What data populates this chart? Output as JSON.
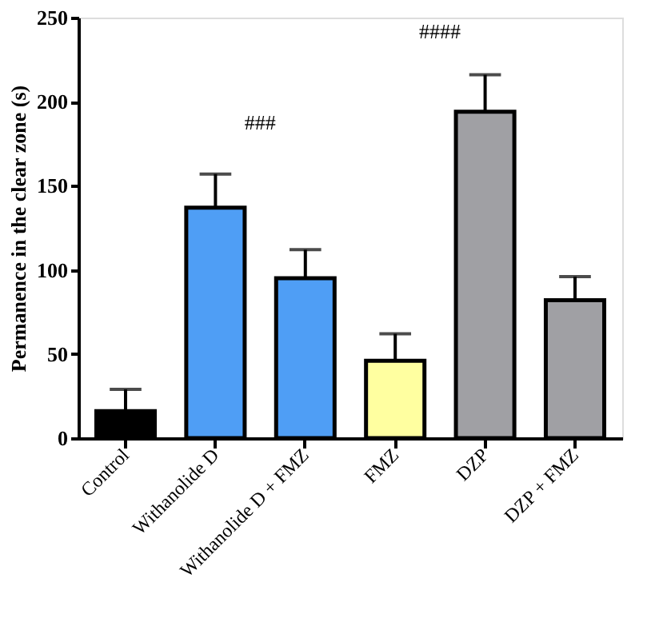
{
  "chart_data": {
    "type": "bar",
    "ylabel": "Permanence in the clear zone (s)",
    "categories": [
      "Control",
      "Withanolide D",
      "Withanolide D + FMZ",
      "FMZ",
      "DZP",
      "DZP + FMZ"
    ],
    "values": [
      16,
      137,
      95,
      46,
      194,
      82
    ],
    "errors": [
      [
        16,
        29
      ],
      [
        137,
        157
      ],
      [
        95,
        112
      ],
      [
        46,
        62
      ],
      [
        194,
        216
      ],
      [
        82,
        96
      ]
    ],
    "colors": [
      "#000000",
      "#4f9ef5",
      "#4f9ef5",
      "#ffffa0",
      "#a0a0a4",
      "#a0a0a4"
    ],
    "ylim": [
      0,
      250
    ],
    "yticks": [
      0,
      50,
      100,
      150,
      200,
      250
    ],
    "grid": false,
    "annotations": [
      "###",
      "####"
    ]
  }
}
